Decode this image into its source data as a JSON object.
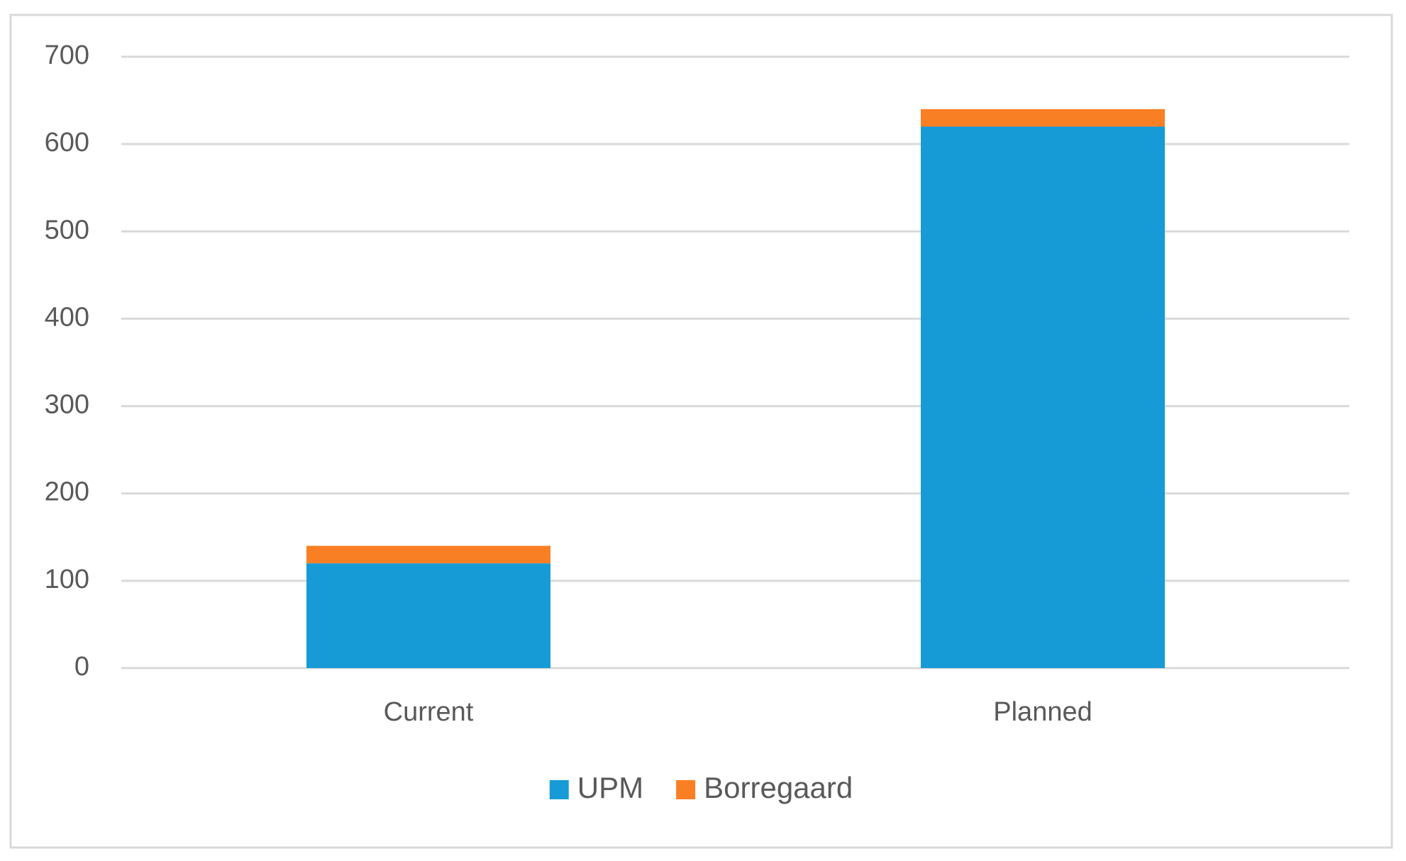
{
  "chart_data": {
    "type": "stacked-bar",
    "categories": [
      "Current",
      "Planned"
    ],
    "series": [
      {
        "name": "UPM",
        "color": "#169bd7",
        "values": [
          120,
          620
        ]
      },
      {
        "name": "Borregaard",
        "color": "#f97f24",
        "values": [
          20,
          20
        ]
      }
    ],
    "ylim": [
      0,
      700
    ],
    "yticks": [
      0,
      100,
      200,
      300,
      400,
      500,
      600,
      700
    ],
    "grid": true
  }
}
